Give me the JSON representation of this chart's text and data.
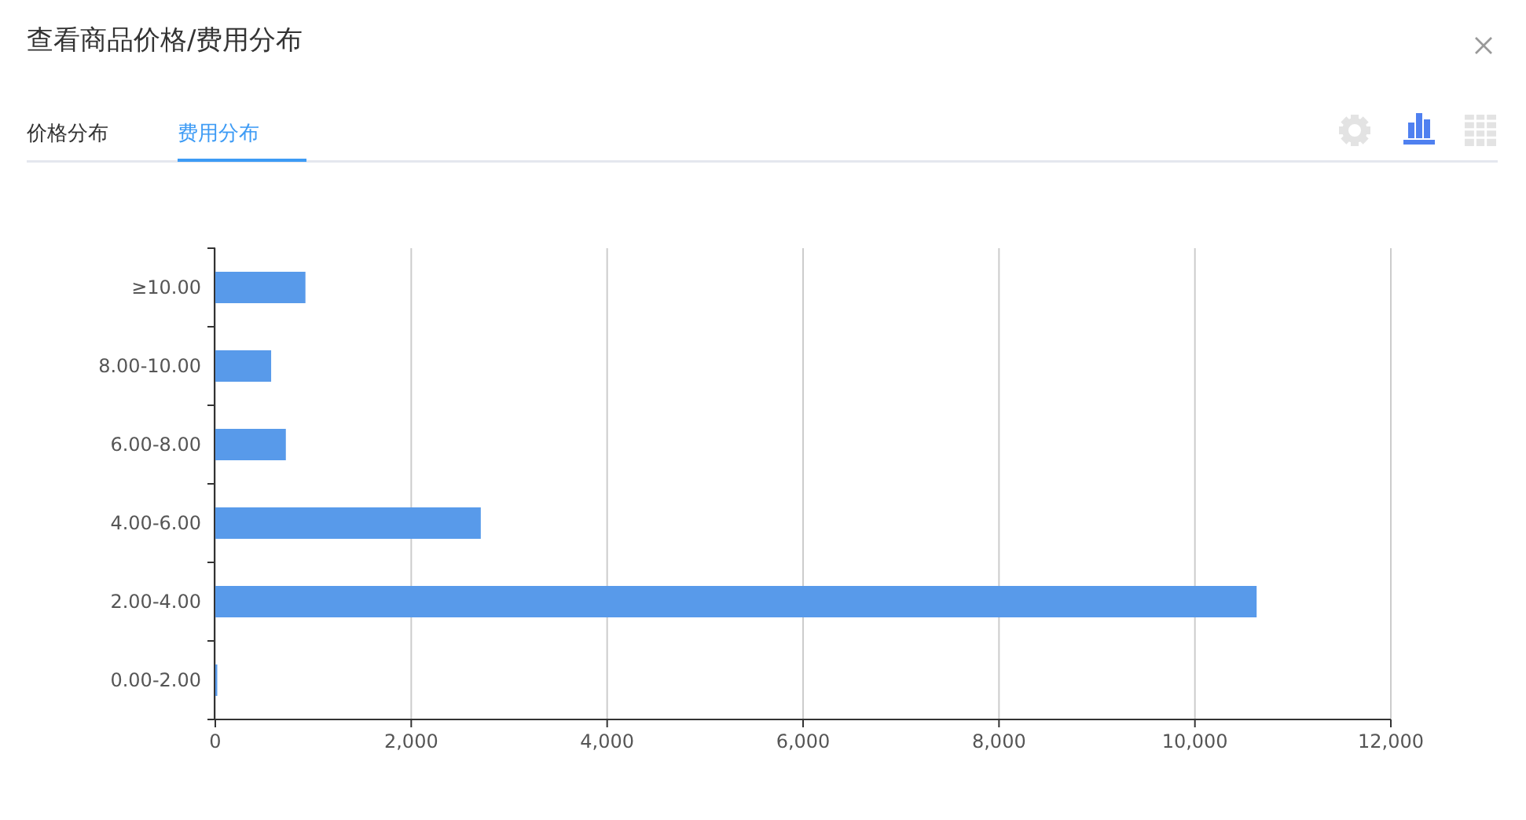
{
  "chart_data": {
    "type": "bar",
    "orientation": "horizontal",
    "title": "查看商品价格/费用分布",
    "annotations": [
      "价格分布",
      "费用分布"
    ],
    "categories": [
      "≥10.00",
      "8.00-10.00",
      "6.00-8.00",
      "4.00-6.00",
      "2.00-4.00",
      "0.00-2.00"
    ],
    "values": [
      920,
      570,
      720,
      2710,
      10630,
      20
    ],
    "color": "#589aea",
    "xlim": [
      0,
      12000
    ],
    "xticks": [
      0,
      {
        "value": 2000,
        "label": "2,000"
      },
      {
        "value": 4000,
        "label": "4,000"
      },
      {
        "value": 6000,
        "label": "6,000"
      },
      {
        "value": 8000,
        "label": "8,000"
      },
      {
        "value": 10000,
        "label": "10,000"
      },
      {
        "value": 12000,
        "label": "12,000"
      }
    ],
    "grid": "x"
  }
}
